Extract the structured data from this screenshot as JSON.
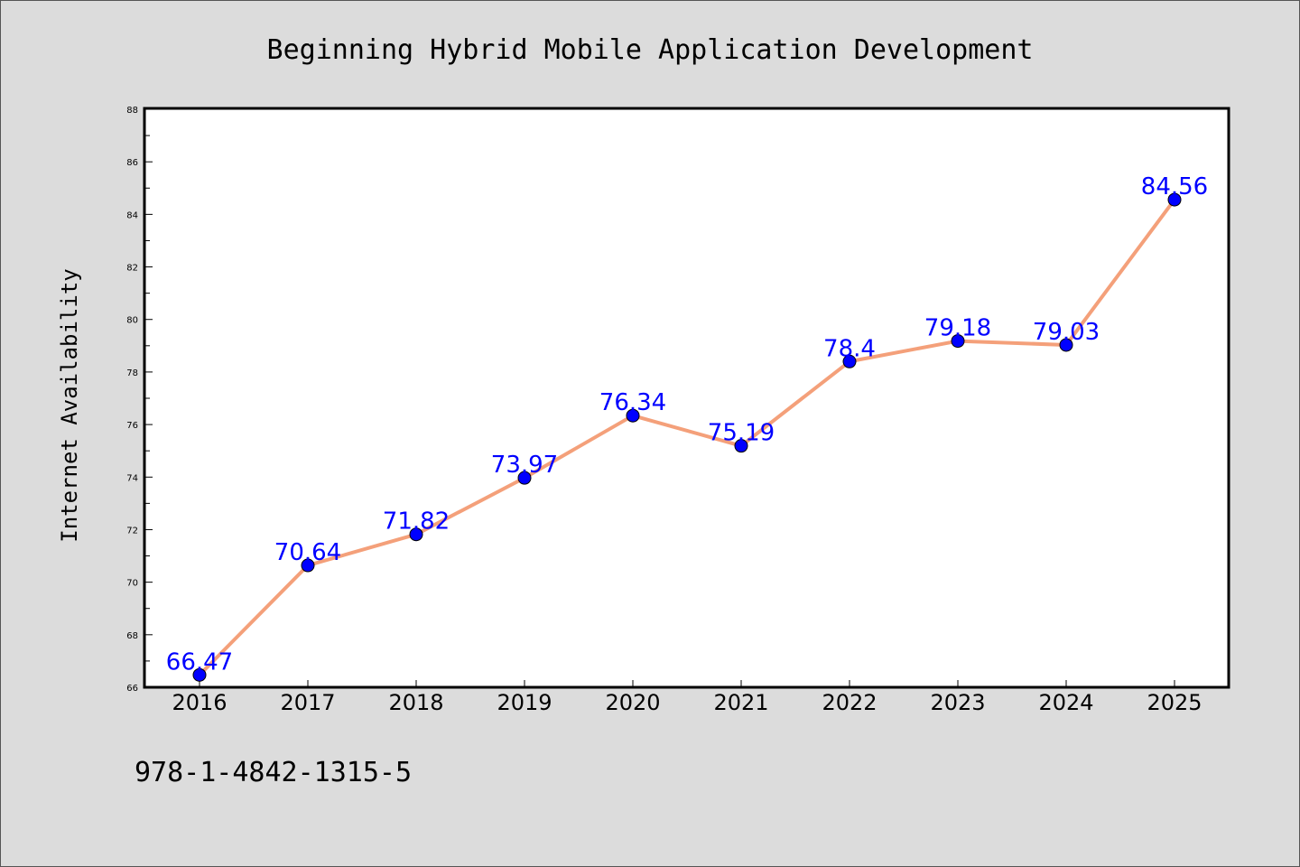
{
  "chart_data": {
    "type": "line",
    "title": "Beginning Hybrid Mobile Application Development",
    "xlabel": "",
    "ylabel": "Internet Availability",
    "categories": [
      "2016",
      "2017",
      "2018",
      "2019",
      "2020",
      "2021",
      "2022",
      "2023",
      "2024",
      "2025"
    ],
    "series": [
      {
        "values": [
          66.47,
          70.64,
          71.82,
          73.97,
          76.34,
          75.19,
          78.4,
          79.18,
          79.03,
          84.56
        ],
        "labels": [
          "66.47",
          "70.64",
          "71.82",
          "73.97",
          "76.34",
          "75.19",
          "78.4",
          "79.18",
          "79.03",
          "84.56"
        ]
      }
    ],
    "ylim": [
      66,
      88
    ],
    "yticks": [
      "66",
      "68",
      "70",
      "72",
      "74",
      "76",
      "78",
      "80",
      "82",
      "84",
      "86",
      "88"
    ],
    "grid": false,
    "legend": "none",
    "colors": {
      "line": "#f4a07a",
      "marker": "#0000ff",
      "data_label": "#0000ff",
      "background": "#dcdcdc",
      "plot_area": "#ffffff"
    }
  },
  "footer": {
    "isbn": "978-1-4842-1315-5"
  }
}
